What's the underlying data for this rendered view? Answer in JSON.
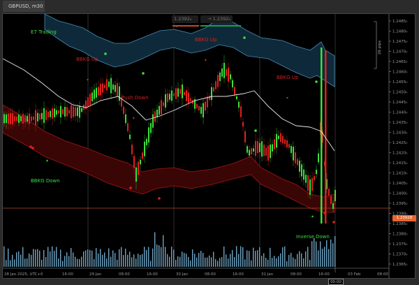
{
  "window": {
    "tab_title": "GBPUSD, m30"
  },
  "quick_trade": {
    "sell_price": "1.2392₈",
    "sell_arrow": "→",
    "buy_arrow": "→",
    "buy_price": "1.2392₈",
    "sell_color": "#c8452d",
    "buy_color": "#1f9a4a"
  },
  "labels": {
    "e7_trading": "E7 Trading",
    "bbkg_up_1": "BBKG Up",
    "bbkg_up_2": "BBKG Up",
    "bbkg_up_3": "BBKG Up",
    "push_down": "Push Down",
    "bbkg_down": "BBKG Down",
    "inverse_down": "Inverse Down",
    "pips_ruler": "26 pips"
  },
  "price_axis": {
    "ticks": [
      "1.2485₀",
      "1.2480₀",
      "1.2475₀",
      "1.2470₀",
      "1.2465₀",
      "1.2460₀",
      "1.2455₀",
      "1.2450₀",
      "1.2445₀",
      "1.2440₀",
      "1.2435₀",
      "1.2430₀",
      "1.2425₀",
      "1.2420₀",
      "1.2415₀",
      "1.2410₀",
      "1.2405₀",
      "1.2400₀",
      "1.2395₀",
      "1.2390₀",
      "1.2385₀",
      "1.2380₀",
      "1.2375₀",
      "1.2370₀",
      "1.2365₀"
    ],
    "current_price": "1.23928",
    "current_price_color": "#e8652e"
  },
  "time_axis": {
    "ticks": [
      "28 Jan 2025, UTC+0",
      "16:00",
      "29 Jan",
      "08:00",
      "16:00",
      "30 Jan",
      "08:00",
      "16:00",
      "31 Jan",
      "08:00",
      "16:00",
      "03 Feb",
      "08:00"
    ],
    "cursor_time": "00:00"
  },
  "colors": {
    "bull": "#3be03b",
    "bear": "#e02020",
    "upper_band": "#0e2a3a",
    "lower_band": "#3a0505",
    "ma": "#e8e8e8",
    "volume": "#6fa4c4"
  }
}
